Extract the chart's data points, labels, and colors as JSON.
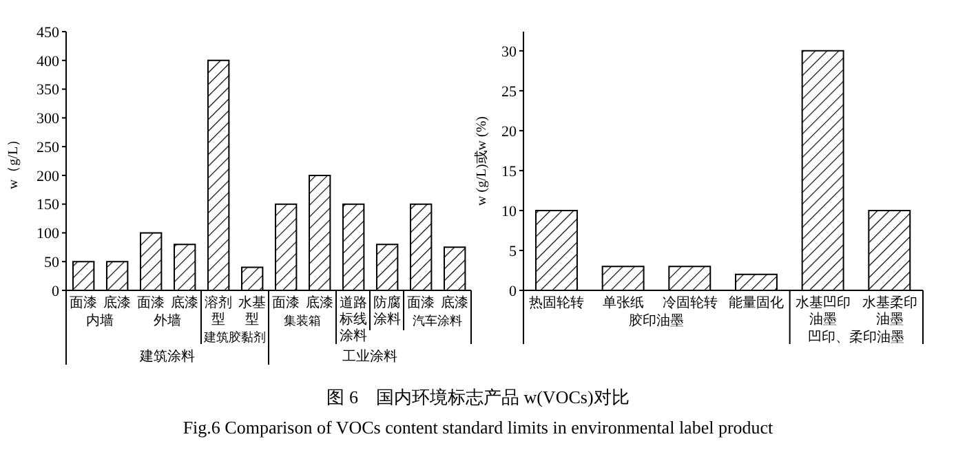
{
  "chart_data": [
    {
      "type": "bar",
      "title": "图 6　国内环境标志产品 w(VOCs)对比",
      "subtitle": "Fig.6 Comparison of VOCs content standard limits in environmental label product",
      "ylabel": "w（g/L）",
      "categories": [
        "面漆",
        "底漆",
        "面漆",
        "底漆",
        "溶剂型",
        "水基型",
        "面漆",
        "底漆",
        "道路标线涂料",
        "防腐涂料",
        "面漆",
        "底漆"
      ],
      "values": [
        50,
        50,
        100,
        80,
        400,
        40,
        150,
        200,
        150,
        80,
        150,
        75
      ],
      "color": "#000000",
      "ylim": [
        0,
        450
      ],
      "yticks": [
        0,
        50,
        100,
        150,
        200,
        250,
        300,
        350,
        400,
        450
      ],
      "annotations": [
        "内墙",
        "外墙",
        "建筑胶黏剂",
        "集装箱",
        "汽车涂料",
        "建筑涂料",
        "工业涂料"
      ]
    },
    {
      "type": "bar",
      "ylabel": "w (g/L)或w (%)",
      "categories": [
        "热固轮转",
        "单张纸",
        "冷固轮转",
        "能量固化",
        "水基凹印油墨",
        "水基柔印油墨"
      ],
      "values": [
        10,
        3,
        3,
        2,
        30,
        10
      ],
      "color": "#000000",
      "ylim": [
        0,
        32.4
      ],
      "yticks": [
        0,
        5,
        10,
        15,
        20,
        25,
        30
      ],
      "annotations": [
        "胶印油墨",
        "凹印、柔印油墨"
      ]
    }
  ]
}
